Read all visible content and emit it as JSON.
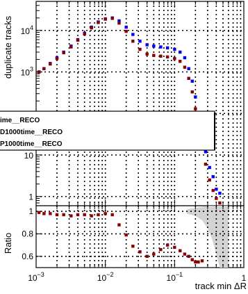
{
  "chart_data": [
    {
      "type": "scatter",
      "xlabel": "track min ΔR",
      "ylabel": "duplicate tracks",
      "xscale": "log",
      "yscale": "log",
      "xlim": [
        0.001,
        1
      ],
      "ylim": [
        0.6,
        50000
      ],
      "grid": true,
      "yticks": [
        {
          "v": 10000,
          "base": "10",
          "exp": "4"
        },
        {
          "v": 1000,
          "base": "10",
          "exp": "3"
        },
        {
          "v": 10,
          "base": "10",
          "exp": ""
        },
        {
          "v": 1,
          "base": "1",
          "exp": ""
        }
      ],
      "legend": {
        "position": "middle-left",
        "entries": [
          {
            "label": "ime__RECO",
            "color": "#ffffff"
          },
          {
            "label": "D1000time__RECO",
            "color": "#0000ff"
          },
          {
            "label": "P1000time__RECO",
            "color": "#8b0000"
          }
        ]
      },
      "series": [
        {
          "color": "#0000ff",
          "x": [
            0.0011,
            0.0013,
            0.0016,
            0.002,
            0.0025,
            0.0032,
            0.004,
            0.005,
            0.0063,
            0.0079,
            0.01,
            0.0126,
            0.0158,
            0.02,
            0.025,
            0.0316,
            0.04,
            0.05,
            0.063,
            0.079,
            0.1,
            0.12,
            0.14,
            0.16,
            0.18,
            0.2,
            0.22,
            0.25,
            0.28,
            0.32,
            0.36,
            0.4,
            0.45
          ],
          "y": [
            1000,
            1200,
            1600,
            2200,
            3000,
            4200,
            6000,
            8500,
            12000,
            16000,
            19000,
            20000,
            17000,
            12000,
            8000,
            5500,
            4500,
            4200,
            4000,
            3800,
            3500,
            3000,
            2200,
            1200,
            600,
            250,
            90,
            30,
            12,
            5,
            3,
            1.5,
            1.2
          ]
        },
        {
          "color": "#8b0000",
          "x": [
            0.0011,
            0.0013,
            0.0016,
            0.002,
            0.0025,
            0.0032,
            0.004,
            0.005,
            0.0063,
            0.0079,
            0.01,
            0.0126,
            0.0158,
            0.02,
            0.025,
            0.0316,
            0.04,
            0.05,
            0.063,
            0.079,
            0.1,
            0.12,
            0.14,
            0.16,
            0.18,
            0.2,
            0.22,
            0.25,
            0.28,
            0.32,
            0.36,
            0.4,
            0.45
          ],
          "y": [
            1000,
            1200,
            1550,
            2100,
            2900,
            4000,
            5800,
            8200,
            11500,
            15500,
            18700,
            19500,
            15000,
            9500,
            5500,
            3500,
            2700,
            2500,
            2400,
            2300,
            2100,
            1800,
            1300,
            700,
            330,
            130,
            45,
            14,
            6,
            2.5,
            1.4,
            0.9,
            0.7
          ]
        }
      ]
    },
    {
      "type": "scatter",
      "xlabel": "track min ΔR",
      "ylabel": "Ratio",
      "xscale": "log",
      "xlim": [
        0.001,
        1
      ],
      "ylim": [
        0.5,
        1.05
      ],
      "grid": true,
      "yticks": [
        1,
        0.8,
        0.6
      ],
      "xticks": [
        {
          "v": 0.001,
          "base": "10",
          "exp": "−3"
        },
        {
          "v": 0.01,
          "base": "10",
          "exp": "−2"
        },
        {
          "v": 0.1,
          "base": "10",
          "exp": "−1"
        },
        {
          "v": 1,
          "base": "1",
          "exp": ""
        }
      ],
      "band": {
        "color": "#d3d3d3",
        "x": [
          0.15,
          0.2,
          0.25,
          0.3,
          0.35,
          0.4,
          0.45,
          0.5,
          0.6
        ],
        "lo": [
          0.98,
          0.96,
          0.92,
          0.85,
          0.75,
          0.62,
          0.5,
          0.5,
          0.5
        ],
        "hi": [
          1.02,
          1.03,
          1.04,
          1.05,
          1.05,
          1.05,
          1.05,
          1.05,
          1.05
        ]
      },
      "series": [
        {
          "color": "#8b0000",
          "x": [
            0.0011,
            0.0013,
            0.0016,
            0.002,
            0.0025,
            0.0032,
            0.004,
            0.005,
            0.0063,
            0.0079,
            0.01,
            0.0126,
            0.0158,
            0.02,
            0.025,
            0.0316,
            0.04,
            0.05,
            0.063,
            0.079,
            0.1,
            0.12,
            0.14,
            0.16,
            0.18,
            0.2,
            0.22,
            0.25
          ],
          "y": [
            0.99,
            0.98,
            0.98,
            0.97,
            0.97,
            0.96,
            0.97,
            0.97,
            0.96,
            0.97,
            0.98,
            0.97,
            0.88,
            0.79,
            0.69,
            0.64,
            0.6,
            0.62,
            0.66,
            0.7,
            0.68,
            0.65,
            0.62,
            0.6,
            0.57,
            0.55,
            0.55,
            0.56
          ]
        }
      ]
    }
  ]
}
